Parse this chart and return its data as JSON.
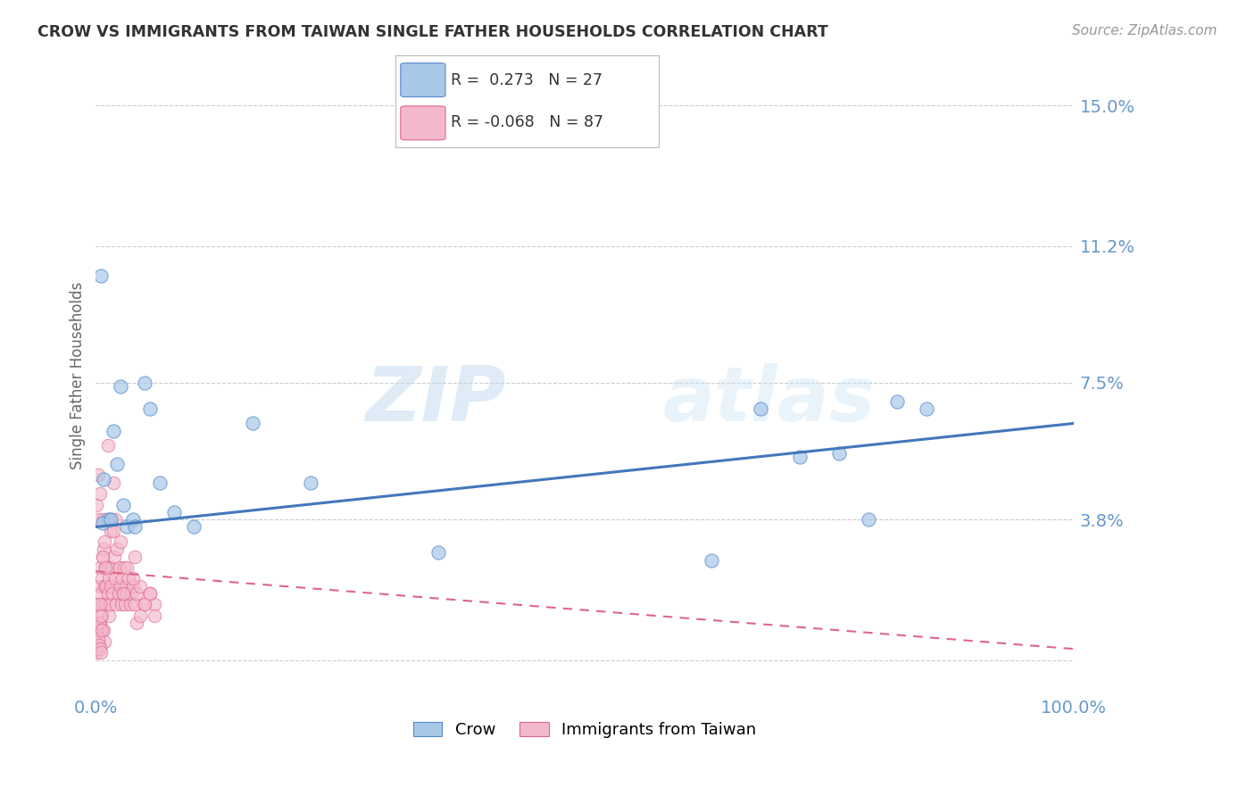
{
  "title": "CROW VS IMMIGRANTS FROM TAIWAN SINGLE FATHER HOUSEHOLDS CORRELATION CHART",
  "source": "Source: ZipAtlas.com",
  "ylabel": "Single Father Households",
  "watermark_zip": "ZIP",
  "watermark_atlas": "atlas",
  "legend1_r": " 0.273",
  "legend1_n": "27",
  "legend2_r": "-0.068",
  "legend2_n": "87",
  "xlim": [
    0.0,
    1.0
  ],
  "ylim": [
    -0.008,
    0.162
  ],
  "ytick_vals": [
    0.0,
    0.038,
    0.075,
    0.112,
    0.15
  ],
  "ytick_labels": [
    "",
    "3.8%",
    "7.5%",
    "11.2%",
    "15.0%"
  ],
  "xtick_vals": [
    0.0,
    1.0
  ],
  "xtick_labels": [
    "0.0%",
    "100.0%"
  ],
  "blue_fill": "#a8c8e8",
  "blue_edge": "#5588cc",
  "blue_line": "#4477bb",
  "pink_fill": "#f4b8cc",
  "pink_edge": "#dd6688",
  "pink_line": "#dd6688",
  "axis_label_color": "#6699cc",
  "grid_color": "#cccccc",
  "title_color": "#333333",
  "source_color": "#999999",
  "bg_color": "#ffffff",
  "crow_x": [
    0.008,
    0.012,
    0.018,
    0.022,
    0.028,
    0.032,
    0.038,
    0.05,
    0.055,
    0.08,
    0.1,
    0.16,
    0.22,
    0.35,
    0.63,
    0.68,
    0.72,
    0.76,
    0.79,
    0.82,
    0.85,
    0.005,
    0.007,
    0.015,
    0.025,
    0.04,
    0.065
  ],
  "crow_y": [
    0.049,
    0.038,
    0.062,
    0.053,
    0.042,
    0.036,
    0.038,
    0.075,
    0.068,
    0.04,
    0.036,
    0.064,
    0.048,
    0.029,
    0.027,
    0.068,
    0.055,
    0.056,
    0.038,
    0.07,
    0.068,
    0.104,
    0.037,
    0.038,
    0.074,
    0.036,
    0.048
  ],
  "taiwan_x": [
    0.001,
    0.002,
    0.002,
    0.003,
    0.003,
    0.004,
    0.004,
    0.005,
    0.005,
    0.006,
    0.006,
    0.007,
    0.007,
    0.008,
    0.008,
    0.009,
    0.009,
    0.01,
    0.01,
    0.011,
    0.012,
    0.012,
    0.013,
    0.013,
    0.014,
    0.015,
    0.015,
    0.016,
    0.017,
    0.018,
    0.019,
    0.02,
    0.021,
    0.022,
    0.023,
    0.024,
    0.025,
    0.026,
    0.027,
    0.028,
    0.029,
    0.03,
    0.031,
    0.032,
    0.033,
    0.035,
    0.036,
    0.038,
    0.04,
    0.042,
    0.045,
    0.05,
    0.055,
    0.06,
    0.001,
    0.001,
    0.002,
    0.002,
    0.003,
    0.003,
    0.004,
    0.004,
    0.005,
    0.006,
    0.007,
    0.008,
    0.009,
    0.01,
    0.012,
    0.015,
    0.018,
    0.02,
    0.025,
    0.028,
    0.032,
    0.038,
    0.04,
    0.042,
    0.045,
    0.05,
    0.055,
    0.06,
    0.001,
    0.002,
    0.003,
    0.004,
    0.005
  ],
  "taiwan_y": [
    0.01,
    0.015,
    0.005,
    0.02,
    0.008,
    0.025,
    0.01,
    0.018,
    0.008,
    0.022,
    0.012,
    0.028,
    0.015,
    0.03,
    0.008,
    0.02,
    0.005,
    0.015,
    0.025,
    0.02,
    0.018,
    0.025,
    0.022,
    0.012,
    0.015,
    0.02,
    0.035,
    0.025,
    0.018,
    0.035,
    0.028,
    0.022,
    0.015,
    0.03,
    0.018,
    0.025,
    0.02,
    0.015,
    0.022,
    0.018,
    0.025,
    0.015,
    0.02,
    0.018,
    0.022,
    0.015,
    0.018,
    0.02,
    0.015,
    0.018,
    0.02,
    0.015,
    0.018,
    0.015,
    0.042,
    0.008,
    0.05,
    0.006,
    0.038,
    0.01,
    0.045,
    0.015,
    0.012,
    0.008,
    0.028,
    0.038,
    0.032,
    0.025,
    0.058,
    0.038,
    0.048,
    0.038,
    0.032,
    0.018,
    0.025,
    0.022,
    0.028,
    0.01,
    0.012,
    0.015,
    0.018,
    0.012,
    0.002,
    0.003,
    0.004,
    0.003,
    0.002
  ],
  "crow_trend_x": [
    0.0,
    1.0
  ],
  "crow_trend_y": [
    0.036,
    0.064
  ],
  "taiwan_trend_x": [
    0.0,
    1.0
  ],
  "taiwan_trend_y": [
    0.024,
    0.003
  ]
}
